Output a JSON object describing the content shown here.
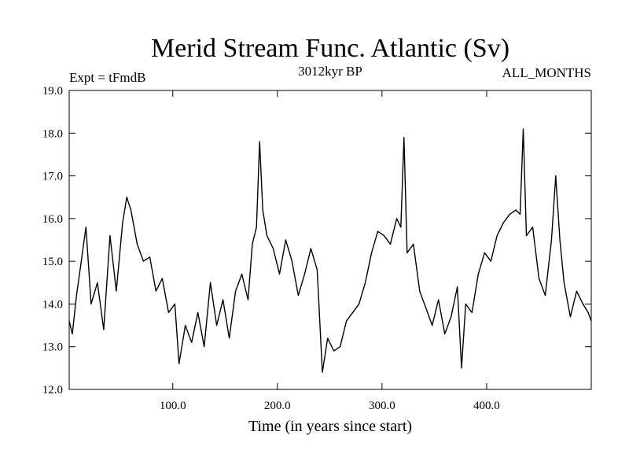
{
  "chart_data": {
    "type": "line",
    "title": "Merid Stream Func. Atlantic (Sv)",
    "subtitle_left": "Expt = tFmdB",
    "subtitle_center": "3012kyr BP",
    "subtitle_right": "ALL_MONTHS",
    "xlabel": "Time (in years since start)",
    "ylabel": "",
    "xlim": [
      1,
      500
    ],
    "ylim": [
      12.0,
      19.0
    ],
    "x_ticks": [
      100,
      200,
      300,
      400
    ],
    "x_tick_labels": [
      "100.0",
      "200.0",
      "300.0",
      "400.0"
    ],
    "y_ticks": [
      12,
      13,
      14,
      15,
      16,
      17,
      18,
      19
    ],
    "y_tick_labels": [
      "12.0",
      "13.0",
      "14.0",
      "15.0",
      "16.0",
      "17.0",
      "18.0",
      "19.0"
    ],
    "grid": false,
    "series": [
      {
        "name": "Merid Stream Func. Atlantic",
        "x": [
          1,
          4,
          8,
          12,
          17,
          22,
          28,
          34,
          40,
          46,
          52,
          56,
          60,
          66,
          72,
          78,
          84,
          90,
          96,
          102,
          106,
          112,
          118,
          124,
          130,
          136,
          142,
          148,
          154,
          160,
          166,
          172,
          176,
          180,
          183,
          186,
          190,
          196,
          202,
          208,
          214,
          220,
          226,
          232,
          238,
          243,
          248,
          254,
          260,
          266,
          272,
          278,
          284,
          290,
          296,
          302,
          308,
          314,
          318,
          321,
          324,
          330,
          336,
          342,
          348,
          354,
          360,
          366,
          372,
          376,
          380,
          386,
          392,
          398,
          404,
          410,
          416,
          422,
          428,
          432,
          435,
          438,
          444,
          450,
          456,
          462,
          466,
          470,
          474,
          480,
          486,
          492,
          497,
          500
        ],
        "values": [
          13.6,
          13.3,
          14.2,
          14.9,
          15.8,
          14.0,
          14.5,
          13.4,
          15.6,
          14.3,
          15.9,
          16.5,
          16.2,
          15.4,
          15.0,
          15.1,
          14.3,
          14.6,
          13.8,
          14.0,
          12.6,
          13.5,
          13.1,
          13.8,
          13.0,
          14.5,
          13.5,
          14.1,
          13.2,
          14.3,
          14.7,
          14.1,
          15.4,
          15.8,
          17.8,
          16.2,
          15.6,
          15.3,
          14.7,
          15.5,
          15.0,
          14.2,
          14.7,
          15.3,
          14.8,
          12.4,
          13.2,
          12.9,
          13.0,
          13.6,
          13.8,
          14.0,
          14.5,
          15.2,
          15.7,
          15.6,
          15.4,
          16.0,
          15.8,
          17.9,
          15.2,
          15.4,
          14.3,
          13.9,
          13.5,
          14.1,
          13.3,
          13.7,
          14.4,
          12.5,
          14.0,
          13.8,
          14.7,
          15.2,
          15.0,
          15.6,
          15.9,
          16.1,
          16.2,
          16.1,
          18.1,
          15.6,
          15.8,
          14.6,
          14.2,
          15.5,
          17.0,
          15.5,
          14.5,
          13.7,
          14.3,
          14.0,
          13.8,
          13.6
        ]
      }
    ]
  }
}
